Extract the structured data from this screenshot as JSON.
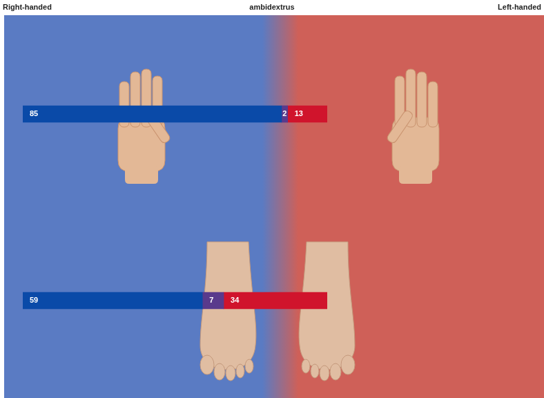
{
  "chart_data": {
    "type": "bar",
    "orientation": "horizontal",
    "stacked": true,
    "data_labels": true,
    "tick_labels": false,
    "grid": false,
    "legend": "top",
    "categories": [
      null,
      null
    ],
    "xlim": [
      0,
      100
    ],
    "series": [
      {
        "name": "Right-handed",
        "color": "#0a4aa8",
        "values": [
          85,
          59
        ]
      },
      {
        "name": "ambidextrus",
        "color": "#5a3a8c",
        "values": [
          2,
          7
        ]
      },
      {
        "name": "Left-handed",
        "color": "#d0142c",
        "values": [
          13,
          34
        ]
      }
    ]
  }
}
